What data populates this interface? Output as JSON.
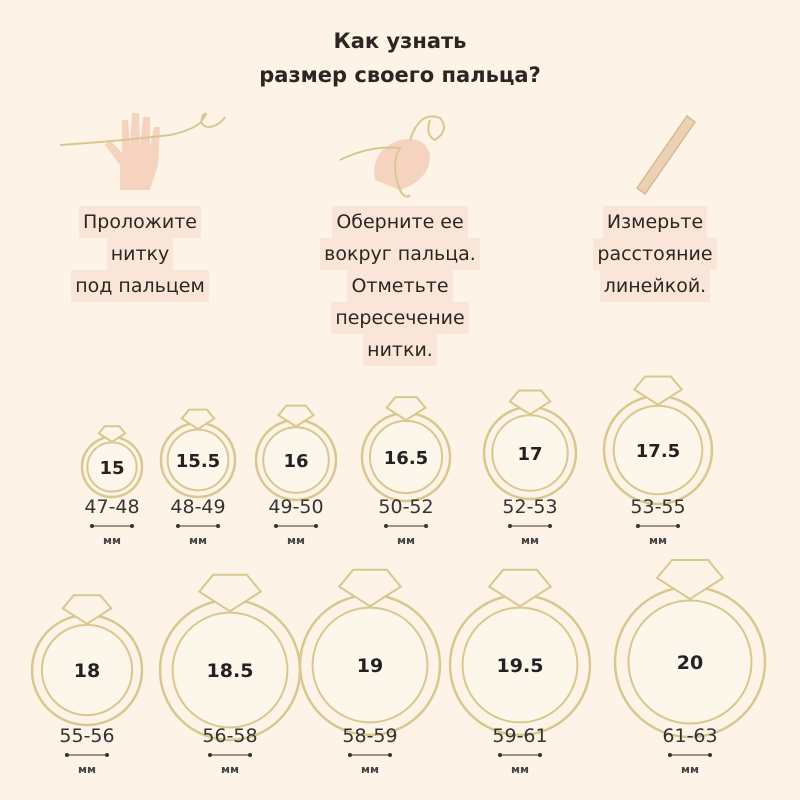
{
  "title": {
    "line1": "Как узнать",
    "line2": "размер своего пальца?"
  },
  "steps": [
    {
      "icon": "hand-with-thread-icon",
      "lines": [
        "Проложите",
        "нитку",
        "под пальцем"
      ]
    },
    {
      "icon": "finger-wrapped-thread-icon",
      "lines": [
        "Оберните ее",
        "вокруг пальца.",
        "Отметьте",
        "пересечение",
        "нитки."
      ]
    },
    {
      "icon": "ruler-icon",
      "lines": [
        "Измерьте",
        "расстояние",
        "линейкой."
      ]
    }
  ],
  "colors": {
    "background": "#fdf4e7",
    "ring": "#d8c78f",
    "highlight": "#f9e6d8",
    "skin": "#f5d3bf"
  },
  "unit": "мм",
  "rings": [
    {
      "size": "15",
      "range": "47-48"
    },
    {
      "size": "15.5",
      "range": "48-49"
    },
    {
      "size": "16",
      "range": "49-50"
    },
    {
      "size": "16.5",
      "range": "50-52"
    },
    {
      "size": "17",
      "range": "52-53"
    },
    {
      "size": "17.5",
      "range": "53-55"
    },
    {
      "size": "18",
      "range": "55-56"
    },
    {
      "size": "18.5",
      "range": "56-58"
    },
    {
      "size": "19",
      "range": "58-59"
    },
    {
      "size": "19.5",
      "range": "59-61"
    },
    {
      "size": "20",
      "range": "61-63"
    }
  ]
}
